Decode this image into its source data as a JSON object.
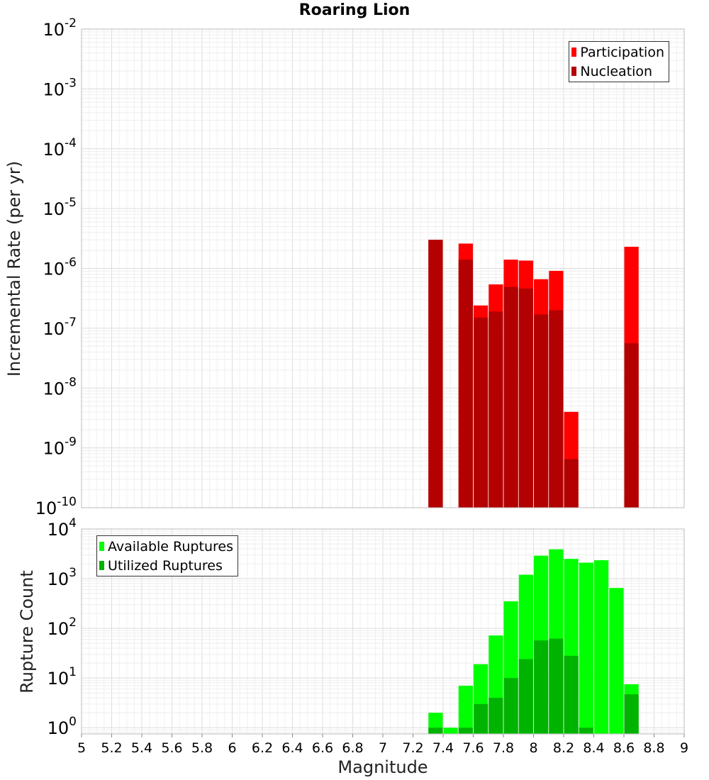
{
  "chart_data": [
    {
      "type": "bar",
      "title": "Roaring Lion",
      "ylabel": "Incremental Rate (per yr)",
      "xlabel": "",
      "yscale": "log",
      "ylim": [
        1e-10,
        0.01
      ],
      "xlim": [
        5,
        9
      ],
      "bar_width": 0.095,
      "legend": "top-right",
      "grid": true,
      "y_tick_labels": [
        {
          "value": 1e-10,
          "base": "10",
          "exp": "-10"
        },
        {
          "value": 1e-09,
          "base": "10",
          "exp": "-9"
        },
        {
          "value": 1e-08,
          "base": "10",
          "exp": "-8"
        },
        {
          "value": 1e-07,
          "base": "10",
          "exp": "-7"
        },
        {
          "value": 1e-06,
          "base": "10",
          "exp": "-6"
        },
        {
          "value": 1e-05,
          "base": "10",
          "exp": "-5"
        },
        {
          "value": 0.0001,
          "base": "10",
          "exp": "-4"
        },
        {
          "value": 0.001,
          "base": "10",
          "exp": "-3"
        },
        {
          "value": 0.01,
          "base": "10",
          "exp": "-2"
        }
      ],
      "x": [
        7.35,
        7.55,
        7.65,
        7.75,
        7.85,
        7.95,
        8.05,
        8.15,
        8.25,
        8.65
      ],
      "series": [
        {
          "name": "Participation",
          "color": "#ff0000",
          "values": [
            3e-06,
            2.6e-06,
            2.4e-07,
            5.4e-07,
            1.4e-06,
            1.35e-06,
            6.6e-07,
            9.1e-07,
            4e-09,
            2.3e-06
          ]
        },
        {
          "name": "Nucleation",
          "color": "#b30000",
          "values": [
            3e-06,
            1.4e-06,
            1.5e-07,
            1.9e-07,
            4.9e-07,
            4.6e-07,
            1.7e-07,
            2e-07,
            6.5e-10,
            5.6e-08
          ]
        }
      ]
    },
    {
      "type": "bar",
      "title": "",
      "ylabel": "Rupture Count",
      "xlabel": "Magnitude",
      "yscale": "log",
      "ylim": [
        0.75,
        10000
      ],
      "xlim": [
        5,
        9
      ],
      "bar_width": 0.095,
      "legend": "top-left",
      "grid": true,
      "y_tick_labels": [
        {
          "value": 1,
          "base": "10",
          "exp": "0"
        },
        {
          "value": 10,
          "base": "10",
          "exp": "1"
        },
        {
          "value": 100,
          "base": "10",
          "exp": "2"
        },
        {
          "value": 1000,
          "base": "10",
          "exp": "3"
        },
        {
          "value": 10000,
          "base": "10",
          "exp": "4"
        }
      ],
      "x_tick_labels": [
        "5",
        "5.2",
        "5.4",
        "5.6",
        "5.8",
        "6",
        "6.2",
        "6.4",
        "6.6",
        "6.8",
        "7",
        "7.2",
        "7.4",
        "7.6",
        "7.8",
        "8",
        "8.2",
        "8.4",
        "8.6",
        "8.8",
        "9"
      ],
      "x": [
        7.35,
        7.45,
        7.55,
        7.65,
        7.75,
        7.85,
        7.95,
        8.05,
        8.15,
        8.25,
        8.35,
        8.45,
        8.55,
        8.65
      ],
      "series": [
        {
          "name": "Available Ruptures",
          "color": "#00ff00",
          "values": [
            2,
            1,
            7,
            19,
            72,
            350,
            1200,
            2900,
            3900,
            2500,
            2100,
            2350,
            650,
            7.5
          ]
        },
        {
          "name": "Utilized Ruptures",
          "color": "#00b300",
          "values": [
            1,
            0,
            1,
            3,
            4,
            10,
            24,
            57,
            62,
            28,
            1,
            0,
            0,
            4.7
          ]
        }
      ]
    }
  ]
}
